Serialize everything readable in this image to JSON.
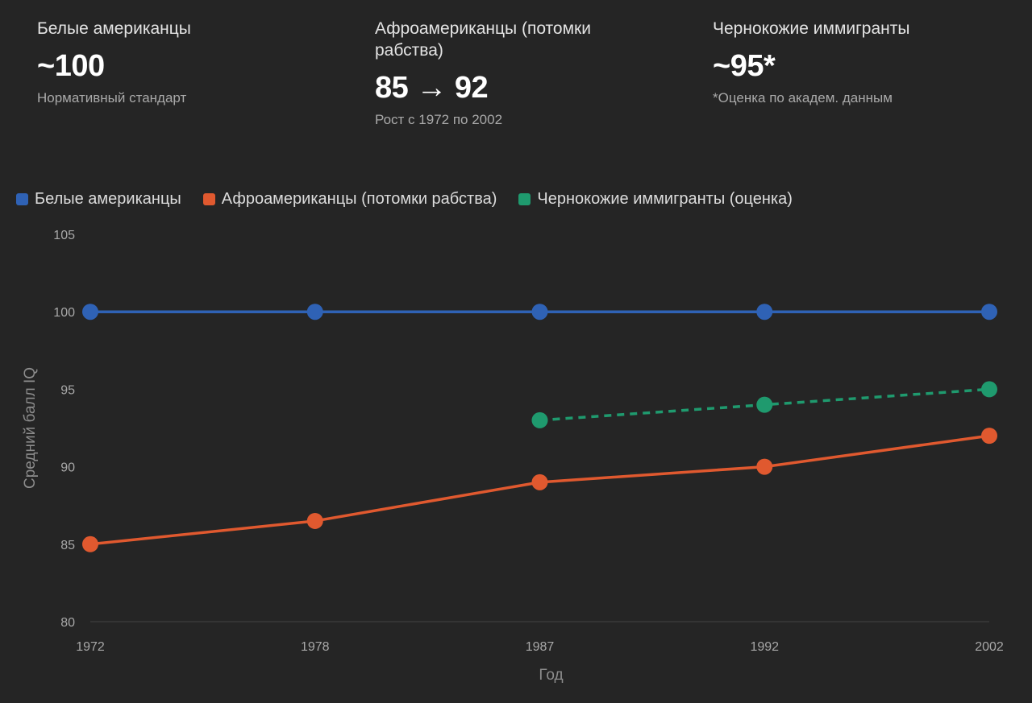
{
  "stats": [
    {
      "label": "Белые американцы",
      "value": "~100",
      "sub": "Нормативный стандарт"
    },
    {
      "label": "Афроамериканцы (потомки рабства)",
      "value": "85 → 92",
      "sub": "Рост с 1972 по 2002"
    },
    {
      "label": "Чернокожие иммигранты",
      "value": "~95*",
      "sub": "*Оценка по академ. данным"
    }
  ],
  "chart_data": {
    "type": "line",
    "categories": [
      "1972",
      "1978",
      "1987",
      "1992",
      "2002"
    ],
    "xlabel": "Год",
    "ylabel": "Средний балл IQ",
    "ylim": [
      80,
      105
    ],
    "yticks": [
      80,
      85,
      90,
      95,
      100,
      105
    ],
    "grid": false,
    "legend_position": "top-left",
    "series": [
      {
        "name": "Белые американцы",
        "color": "#2f62b5",
        "dashed": false,
        "values": [
          100,
          100,
          100,
          100,
          100
        ]
      },
      {
        "name": "Афроамериканцы (потомки рабства)",
        "color": "#e0592f",
        "dashed": false,
        "values": [
          85,
          86.5,
          89,
          90,
          92
        ]
      },
      {
        "name": "Чернокожие иммигранты (оценка)",
        "color": "#1f9a6e",
        "dashed": true,
        "values": [
          null,
          null,
          93,
          94,
          95
        ]
      }
    ]
  }
}
